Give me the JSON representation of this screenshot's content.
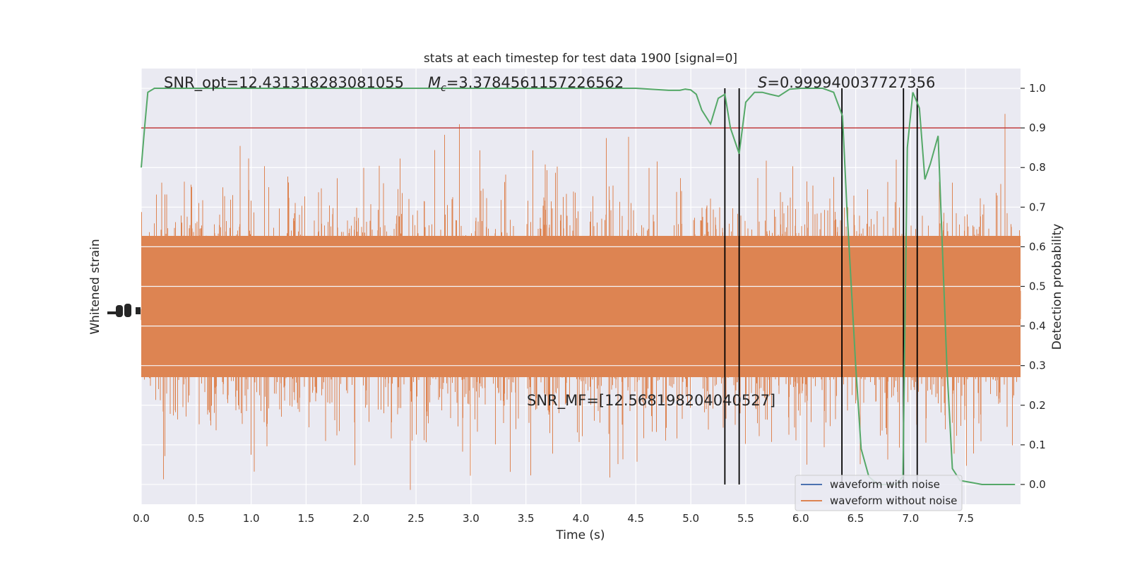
{
  "chart_data": {
    "type": "line",
    "title": "stats at each timestep for test data 1900 [signal=0]",
    "xlabel": "Time (s)",
    "ylabel_left": "Whitened strain",
    "ylabel_right": "Detection probability",
    "xlim": [
      0.0,
      8.0
    ],
    "ylim_right": [
      -0.05,
      1.05
    ],
    "x_ticks": [
      "0.0",
      "0.5",
      "1.0",
      "1.5",
      "2.0",
      "2.5",
      "3.0",
      "3.5",
      "4.0",
      "4.5",
      "5.0",
      "5.5",
      "6.0",
      "6.5",
      "7.0",
      "7.5"
    ],
    "x_tick_values": [
      0.0,
      0.5,
      1.0,
      1.5,
      2.0,
      2.5,
      3.0,
      3.5,
      4.0,
      4.5,
      5.0,
      5.5,
      6.0,
      6.5,
      7.0,
      7.5
    ],
    "y_ticks_right": [
      "0.0",
      "0.1",
      "0.2",
      "0.3",
      "0.4",
      "0.5",
      "0.6",
      "0.7",
      "0.8",
      "0.9",
      "1.0"
    ],
    "y_tick_values_right": [
      0.0,
      0.1,
      0.2,
      0.3,
      0.4,
      0.5,
      0.6,
      0.7,
      0.8,
      0.9,
      1.0
    ],
    "grid": true,
    "legend_position": "lower-right",
    "annotations": {
      "snr_opt": "SNR_opt=12.431318283081055",
      "mc_sym": "M",
      "mc_sub": "c",
      "mc_val": "=3.3784561157226562",
      "s_sym": "S",
      "s_val": "=0.999940037727356",
      "snr_mf": "SNR_MF=[12.568198204040527]"
    },
    "threshold": 0.9,
    "threshold_color": "#c03d3e",
    "vertical_lines_x": [
      5.31,
      5.44,
      6.375,
      6.935,
      7.06
    ],
    "probability": {
      "name": "Detection probability",
      "color": "#55a868",
      "x": [
        0.0,
        0.03,
        0.06,
        0.12,
        0.2,
        0.4,
        1.0,
        2.0,
        3.0,
        4.0,
        4.5,
        4.8,
        4.9,
        4.95,
        5.0,
        5.05,
        5.1,
        5.18,
        5.25,
        5.31,
        5.36,
        5.44,
        5.5,
        5.58,
        5.65,
        5.72,
        5.8,
        5.9,
        6.0,
        6.1,
        6.2,
        6.3,
        6.38,
        6.42,
        6.5,
        6.55,
        6.62,
        6.7,
        6.8,
        6.87,
        6.93,
        6.97,
        7.02,
        7.08,
        7.13,
        7.18,
        7.25,
        7.33,
        7.38,
        7.45,
        7.55,
        7.65,
        7.75,
        7.85,
        7.95
      ],
      "y": [
        0.8,
        0.9,
        0.99,
        1.0,
        1.0,
        1.0,
        1.0,
        1.0,
        1.0,
        1.0,
        1.0,
        0.995,
        0.995,
        0.998,
        0.996,
        0.985,
        0.945,
        0.91,
        0.975,
        0.985,
        0.9,
        0.835,
        0.965,
        0.99,
        0.99,
        0.985,
        0.98,
        0.998,
        1.0,
        1.0,
        1.0,
        0.99,
        0.93,
        0.7,
        0.3,
        0.09,
        0.02,
        0.0,
        0.0,
        0.0,
        0.02,
        0.85,
        0.99,
        0.95,
        0.77,
        0.81,
        0.88,
        0.3,
        0.04,
        0.01,
        0.005,
        0.0,
        0.0,
        0.0,
        0.0
      ]
    },
    "series": [
      {
        "name": "waveform with noise",
        "color": "#4c72b0"
      },
      {
        "name": "waveform without noise",
        "color": "#dd8452"
      }
    ],
    "colors": {
      "background": "#eaeaf2",
      "grid": "#ffffff",
      "vline": "#000000"
    }
  }
}
